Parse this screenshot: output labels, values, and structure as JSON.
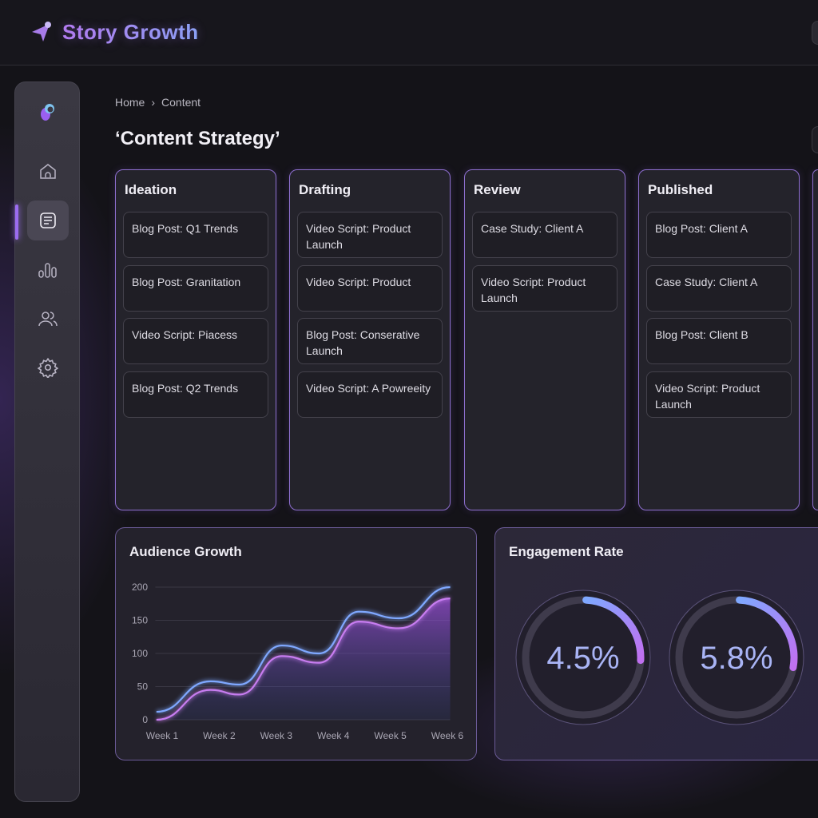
{
  "app": {
    "title": "Story Growth"
  },
  "breadcrumb": [
    "Home",
    "Content"
  ],
  "breadcrumb_sep": "›",
  "page_title": "‘Content Strategy’",
  "sidebar": {
    "items": [
      {
        "icon": "home-icon"
      },
      {
        "icon": "document-icon",
        "active": true
      },
      {
        "icon": "bar-chart-icon"
      },
      {
        "icon": "users-icon"
      },
      {
        "icon": "gear-icon"
      }
    ]
  },
  "columns": [
    {
      "title": "Ideation",
      "cards": [
        "Blog Post: Q1 Trends",
        "Blog Post: Granitation",
        "Video Script: Piacess",
        "Blog Post: Q2 Trends"
      ]
    },
    {
      "title": "Drafting",
      "cards": [
        "Video Script: Product Launch",
        "Video Script: Product",
        "Blog Post: Conserative Launch",
        "Video Script: A Powreeity"
      ]
    },
    {
      "title": "Review",
      "cards": [
        "Case Study: Client A",
        "Video Script: Product Launch"
      ]
    },
    {
      "title": "Published",
      "cards": [
        "Blog Post: Client A",
        "Case Study: Client A",
        "Blog Post: Client B",
        "Video Script: Product Launch"
      ]
    }
  ],
  "colors": {
    "accent_purple": "#b57cf0",
    "accent_blue": "#7fa8ff",
    "border": "#8e6fcf"
  },
  "audience": {
    "title": "Audience Growth"
  },
  "chart_data": {
    "type": "area",
    "categories": [
      "Week 1",
      "Week 2",
      "Week 3",
      "Week 4",
      "Week 5",
      "Week 6"
    ],
    "yticks": [
      0,
      50,
      100,
      150,
      200
    ],
    "ylim": [
      0,
      200
    ],
    "grid": true,
    "series": [
      {
        "color": "#7fa8ff",
        "x": [
          0.9,
          1.85,
          2.35,
          3.1,
          3.75,
          4.45,
          5.15,
          6.05
        ],
        "values": [
          12,
          58,
          53,
          112,
          100,
          163,
          153,
          200
        ]
      },
      {
        "color": "#c77df0",
        "x": [
          0.9,
          1.85,
          2.35,
          3.1,
          3.75,
          4.45,
          5.15,
          6.05
        ],
        "values": [
          0,
          45,
          38,
          96,
          86,
          148,
          138,
          183
        ]
      }
    ]
  },
  "engagement": {
    "title": "Engagement Rate",
    "gauges": [
      {
        "label": "4.5%",
        "fill": 0.25
      },
      {
        "label": "5.8%",
        "fill": 0.27
      }
    ]
  }
}
